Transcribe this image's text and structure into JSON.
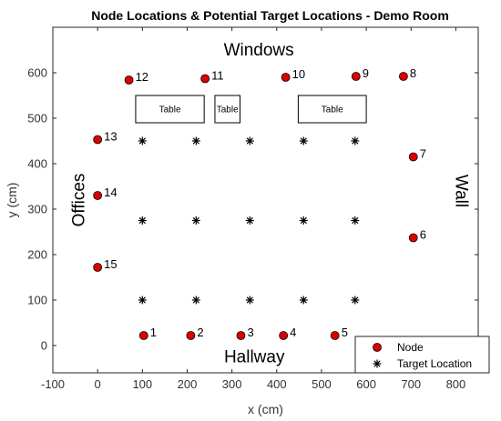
{
  "chart_data": {
    "type": "scatter",
    "title": "Node Locations & Potential Target Locations - Demo Room",
    "xlabel": "x (cm)",
    "ylabel": "y (cm)",
    "xlim": [
      -100,
      850
    ],
    "ylim": [
      -60,
      700
    ],
    "xticks": [
      -100,
      0,
      100,
      200,
      300,
      400,
      500,
      600,
      700,
      800
    ],
    "yticks": [
      0,
      100,
      200,
      300,
      400,
      500,
      600
    ],
    "grid": false,
    "legend_position": "bottom-right",
    "series": [
      {
        "name": "Node",
        "marker": "circle",
        "color": "#dd0000",
        "points": [
          {
            "label": "1",
            "x": 103,
            "y": 22
          },
          {
            "label": "2",
            "x": 208,
            "y": 22
          },
          {
            "label": "3",
            "x": 320,
            "y": 22
          },
          {
            "label": "4",
            "x": 415,
            "y": 22
          },
          {
            "label": "5",
            "x": 530,
            "y": 22
          },
          {
            "label": "6",
            "x": 705,
            "y": 237
          },
          {
            "label": "7",
            "x": 705,
            "y": 415
          },
          {
            "label": "8",
            "x": 683,
            "y": 592
          },
          {
            "label": "9",
            "x": 577,
            "y": 592
          },
          {
            "label": "10",
            "x": 420,
            "y": 590
          },
          {
            "label": "11",
            "x": 240,
            "y": 587
          },
          {
            "label": "12",
            "x": 70,
            "y": 584
          },
          {
            "label": "13",
            "x": 0,
            "y": 453
          },
          {
            "label": "14",
            "x": 0,
            "y": 330
          },
          {
            "label": "15",
            "x": 0,
            "y": 172
          }
        ]
      },
      {
        "name": "Target Location",
        "marker": "asterisk",
        "color": "#000000",
        "points": [
          {
            "x": 100,
            "y": 100
          },
          {
            "x": 220,
            "y": 100
          },
          {
            "x": 340,
            "y": 100
          },
          {
            "x": 460,
            "y": 100
          },
          {
            "x": 575,
            "y": 100
          },
          {
            "x": 100,
            "y": 275
          },
          {
            "x": 220,
            "y": 275
          },
          {
            "x": 340,
            "y": 275
          },
          {
            "x": 460,
            "y": 275
          },
          {
            "x": 575,
            "y": 275
          },
          {
            "x": 100,
            "y": 450
          },
          {
            "x": 220,
            "y": 450
          },
          {
            "x": 340,
            "y": 450
          },
          {
            "x": 460,
            "y": 450
          },
          {
            "x": 575,
            "y": 450
          }
        ]
      }
    ],
    "annotations": [
      {
        "text": "Windows",
        "x": 360,
        "y": 648,
        "rotation": 0
      },
      {
        "text": "Hallway",
        "x": 350,
        "y": -27,
        "rotation": 0
      },
      {
        "text": "Offices",
        "x": -40,
        "y": 320,
        "rotation": -90
      },
      {
        "text": "Wall",
        "x": 810,
        "y": 340,
        "rotation": 90
      }
    ],
    "tables": [
      {
        "label": "Table",
        "x0": 85,
        "x1": 238,
        "y0": 490,
        "y1": 550
      },
      {
        "label": "Table",
        "x0": 262,
        "x1": 318,
        "y0": 490,
        "y1": 550
      },
      {
        "label": "Table",
        "x0": 448,
        "x1": 600,
        "y0": 490,
        "y1": 550
      }
    ]
  }
}
